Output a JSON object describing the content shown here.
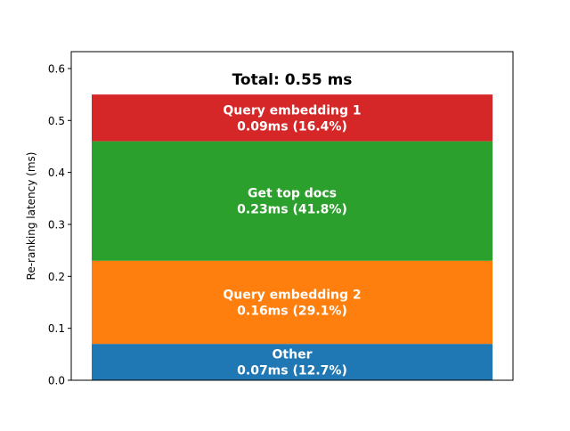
{
  "chart_data": {
    "type": "bar",
    "stacked": true,
    "categories": [
      ""
    ],
    "series": [
      {
        "name": "Other",
        "values": [
          0.07
        ],
        "color": "#1f77b4",
        "label": "0.07ms (12.7%)"
      },
      {
        "name": "Query embedding 2",
        "values": [
          0.16
        ],
        "color": "#ff7f0e",
        "label": "0.16ms (29.1%)"
      },
      {
        "name": "Get top docs",
        "values": [
          0.23
        ],
        "color": "#2ca02c",
        "label": "0.23ms (41.8%)"
      },
      {
        "name": "Query embedding 1",
        "values": [
          0.09
        ],
        "color": "#d62728",
        "label": "0.09ms (16.4%)"
      }
    ],
    "annotation": "Total: 0.55 ms",
    "xlabel": "",
    "ylabel": "Re-ranking latency (ms)",
    "ylim": [
      0,
      0.6325
    ],
    "yticks": [
      "0.0",
      "0.1",
      "0.2",
      "0.3",
      "0.4",
      "0.5",
      "0.6"
    ],
    "grid": false,
    "label_color": "#ffffff"
  }
}
